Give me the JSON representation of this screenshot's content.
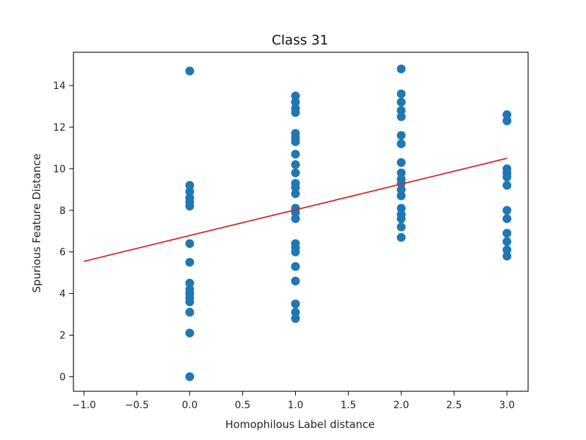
{
  "chart_data": {
    "type": "scatter",
    "title": "Class 31",
    "xlabel": "Homophilous Label distance",
    "ylabel": "Spurious Feature Distance",
    "xlim": [
      -1.1,
      3.2
    ],
    "ylim": [
      -0.7,
      15.6
    ],
    "xticks": [
      -1.0,
      -0.5,
      0.0,
      0.5,
      1.0,
      1.5,
      2.0,
      2.5,
      3.0
    ],
    "xtick_labels": [
      "−1.0",
      "−0.5",
      "0.0",
      "0.5",
      "1.0",
      "1.5",
      "2.0",
      "2.5",
      "3.0"
    ],
    "yticks": [
      0,
      2,
      4,
      6,
      8,
      10,
      12,
      14
    ],
    "ytick_labels": [
      "0",
      "2",
      "4",
      "6",
      "8",
      "10",
      "12",
      "14"
    ],
    "grid": false,
    "marker_color": "#1f77b4",
    "line_color": "#d62728",
    "points": [
      {
        "x": 0,
        "y": 14.7
      },
      {
        "x": 0,
        "y": 9.2
      },
      {
        "x": 0,
        "y": 8.9
      },
      {
        "x": 0,
        "y": 8.6
      },
      {
        "x": 0,
        "y": 8.4
      },
      {
        "x": 0,
        "y": 8.2
      },
      {
        "x": 0,
        "y": 6.4
      },
      {
        "x": 0,
        "y": 5.5
      },
      {
        "x": 0,
        "y": 4.5
      },
      {
        "x": 0,
        "y": 4.2
      },
      {
        "x": 0,
        "y": 4.0
      },
      {
        "x": 0,
        "y": 3.8
      },
      {
        "x": 0,
        "y": 3.6
      },
      {
        "x": 0,
        "y": 3.1
      },
      {
        "x": 0,
        "y": 2.1
      },
      {
        "x": 0,
        "y": 0.0
      },
      {
        "x": 1,
        "y": 13.5
      },
      {
        "x": 1,
        "y": 13.2
      },
      {
        "x": 1,
        "y": 12.9
      },
      {
        "x": 1,
        "y": 12.7
      },
      {
        "x": 1,
        "y": 11.7
      },
      {
        "x": 1,
        "y": 11.5
      },
      {
        "x": 1,
        "y": 11.3
      },
      {
        "x": 1,
        "y": 10.7
      },
      {
        "x": 1,
        "y": 10.2
      },
      {
        "x": 1,
        "y": 9.8
      },
      {
        "x": 1,
        "y": 9.3
      },
      {
        "x": 1,
        "y": 9.1
      },
      {
        "x": 1,
        "y": 8.8
      },
      {
        "x": 1,
        "y": 8.1
      },
      {
        "x": 1,
        "y": 7.9
      },
      {
        "x": 1,
        "y": 7.6
      },
      {
        "x": 1,
        "y": 6.4
      },
      {
        "x": 1,
        "y": 6.2
      },
      {
        "x": 1,
        "y": 6.0
      },
      {
        "x": 1,
        "y": 5.3
      },
      {
        "x": 1,
        "y": 4.6
      },
      {
        "x": 1,
        "y": 3.5
      },
      {
        "x": 1,
        "y": 3.1
      },
      {
        "x": 1,
        "y": 2.8
      },
      {
        "x": 2,
        "y": 14.8
      },
      {
        "x": 2,
        "y": 13.6
      },
      {
        "x": 2,
        "y": 13.2
      },
      {
        "x": 2,
        "y": 12.8
      },
      {
        "x": 2,
        "y": 12.5
      },
      {
        "x": 2,
        "y": 11.6
      },
      {
        "x": 2,
        "y": 11.2
      },
      {
        "x": 2,
        "y": 10.3
      },
      {
        "x": 2,
        "y": 9.8
      },
      {
        "x": 2,
        "y": 9.5
      },
      {
        "x": 2,
        "y": 9.3
      },
      {
        "x": 2,
        "y": 9.0
      },
      {
        "x": 2,
        "y": 8.7
      },
      {
        "x": 2,
        "y": 8.1
      },
      {
        "x": 2,
        "y": 7.8
      },
      {
        "x": 2,
        "y": 7.6
      },
      {
        "x": 2,
        "y": 7.2
      },
      {
        "x": 2,
        "y": 6.7
      },
      {
        "x": 3,
        "y": 12.6
      },
      {
        "x": 3,
        "y": 12.3
      },
      {
        "x": 3,
        "y": 10.0
      },
      {
        "x": 3,
        "y": 9.8
      },
      {
        "x": 3,
        "y": 9.6
      },
      {
        "x": 3,
        "y": 9.2
      },
      {
        "x": 3,
        "y": 8.0
      },
      {
        "x": 3,
        "y": 7.6
      },
      {
        "x": 3,
        "y": 6.9
      },
      {
        "x": 3,
        "y": 6.5
      },
      {
        "x": 3,
        "y": 6.1
      },
      {
        "x": 3,
        "y": 5.8
      }
    ],
    "regression_line": {
      "x": [
        -1.0,
        3.0
      ],
      "y": [
        5.55,
        10.5
      ]
    }
  }
}
